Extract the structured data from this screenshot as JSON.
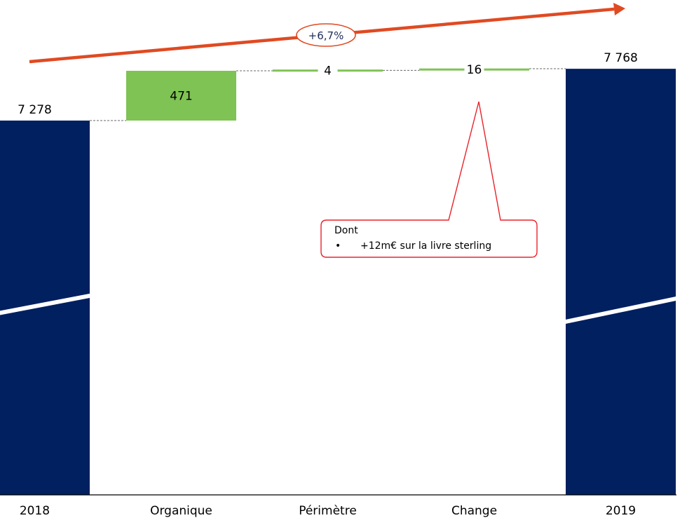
{
  "chart_data": {
    "type": "bar",
    "subtype": "waterfall",
    "categories": [
      "2018",
      "Organique",
      "Périmètre",
      "Change",
      "2019"
    ],
    "values": [
      7278,
      471,
      4,
      16,
      7768
    ],
    "value_labels": [
      "7 278",
      "471",
      "4",
      "16",
      "7 768"
    ],
    "kinds": [
      "total",
      "delta",
      "delta",
      "delta",
      "total"
    ],
    "axis_break": true,
    "colors": {
      "total": "#002060",
      "delta": "#7ec353",
      "connector": "#6a6a6a",
      "growth_arrow": "#e04a22",
      "callout_border": "#e8232a",
      "growth_text": "#1c2d5a"
    },
    "growth_label": "+6,7%",
    "callout": {
      "target_category": "Change",
      "title": "Dont",
      "bullet": "•",
      "item": "+12m€ sur la livre sterling"
    }
  }
}
